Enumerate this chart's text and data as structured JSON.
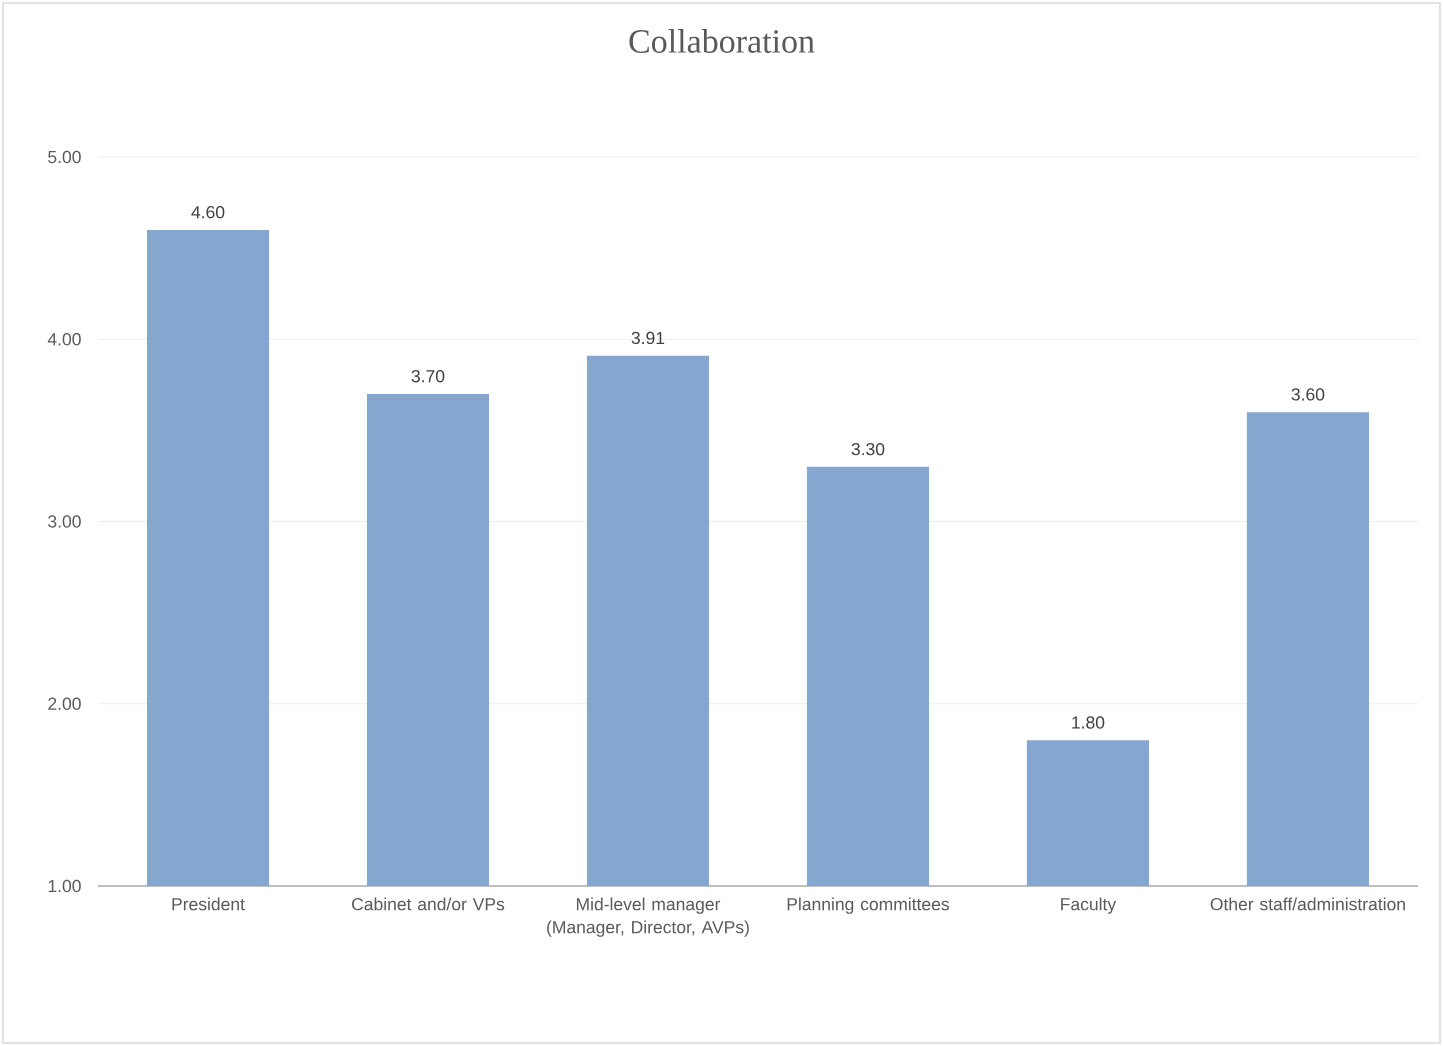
{
  "chart_data": {
    "type": "bar",
    "title": "Collaboration",
    "categories": [
      "President",
      "Cabinet and/or VPs",
      "Mid-level manager (Manager, Director, AVPs)",
      "Planning committees",
      "Faculty",
      "Other staff/administration"
    ],
    "values": [
      4.6,
      3.7,
      3.91,
      3.3,
      1.8,
      3.6
    ],
    "value_labels": [
      "4.60",
      "3.70",
      "3.91",
      "3.30",
      "1.80",
      "3.60"
    ],
    "color": "#85a7cf",
    "ylim": [
      1,
      5
    ],
    "yticks": [
      {
        "value": 1,
        "label": "1.00"
      },
      {
        "value": 2,
        "label": "2.00"
      },
      {
        "value": 3,
        "label": "3.00"
      },
      {
        "value": 4,
        "label": "4.00"
      },
      {
        "value": 5,
        "label": "5.00"
      }
    ],
    "grid": "y"
  }
}
